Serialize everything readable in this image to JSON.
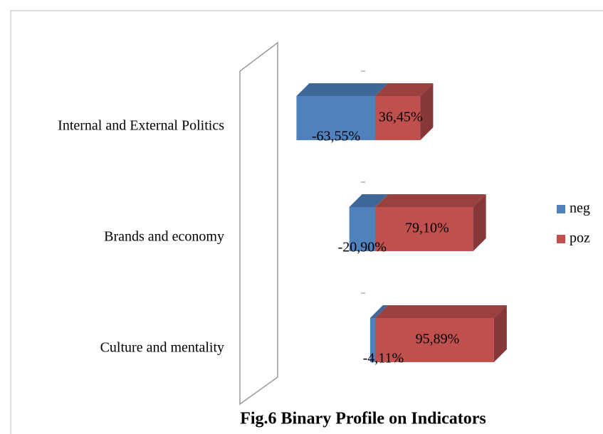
{
  "chart_data": {
    "type": "bar",
    "orientation": "horizontal",
    "stacked": true,
    "three_d": true,
    "title": "Fig.6 Binary Profile on Indicators",
    "categories": [
      "Internal and External Politics",
      "Brands and economy",
      "Culture and mentality"
    ],
    "series": [
      {
        "name": "neg",
        "color": "#4f81bd",
        "values": [
          -63.55,
          -20.9,
          -4.11
        ],
        "value_labels": [
          "-63,55%",
          "-20,90%",
          "-4,11%"
        ]
      },
      {
        "name": "poz",
        "color": "#c0504d",
        "values": [
          36.45,
          79.1,
          95.89
        ],
        "value_labels": [
          "36,45%",
          "79,10%",
          "95,89%"
        ]
      }
    ],
    "legend": "right"
  }
}
